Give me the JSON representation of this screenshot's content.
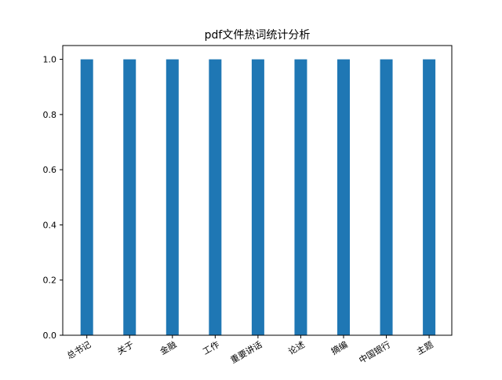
{
  "chart_data": {
    "type": "bar",
    "title": "pdf文件热词统计分析",
    "xlabel": "",
    "ylabel": "",
    "categories": [
      "总书记",
      "关于",
      "金融",
      "工作",
      "重要讲话",
      "论述",
      "摘编",
      "中国银行",
      "主题"
    ],
    "values": [
      1.0,
      1.0,
      1.0,
      1.0,
      1.0,
      1.0,
      1.0,
      1.0,
      1.0
    ],
    "ylim": [
      0,
      1.05
    ],
    "yticks": [
      "0.0",
      "0.2",
      "0.4",
      "0.6",
      "0.8",
      "1.0"
    ],
    "bar_color": "#1f77b4",
    "grid": false,
    "legend": "none"
  }
}
